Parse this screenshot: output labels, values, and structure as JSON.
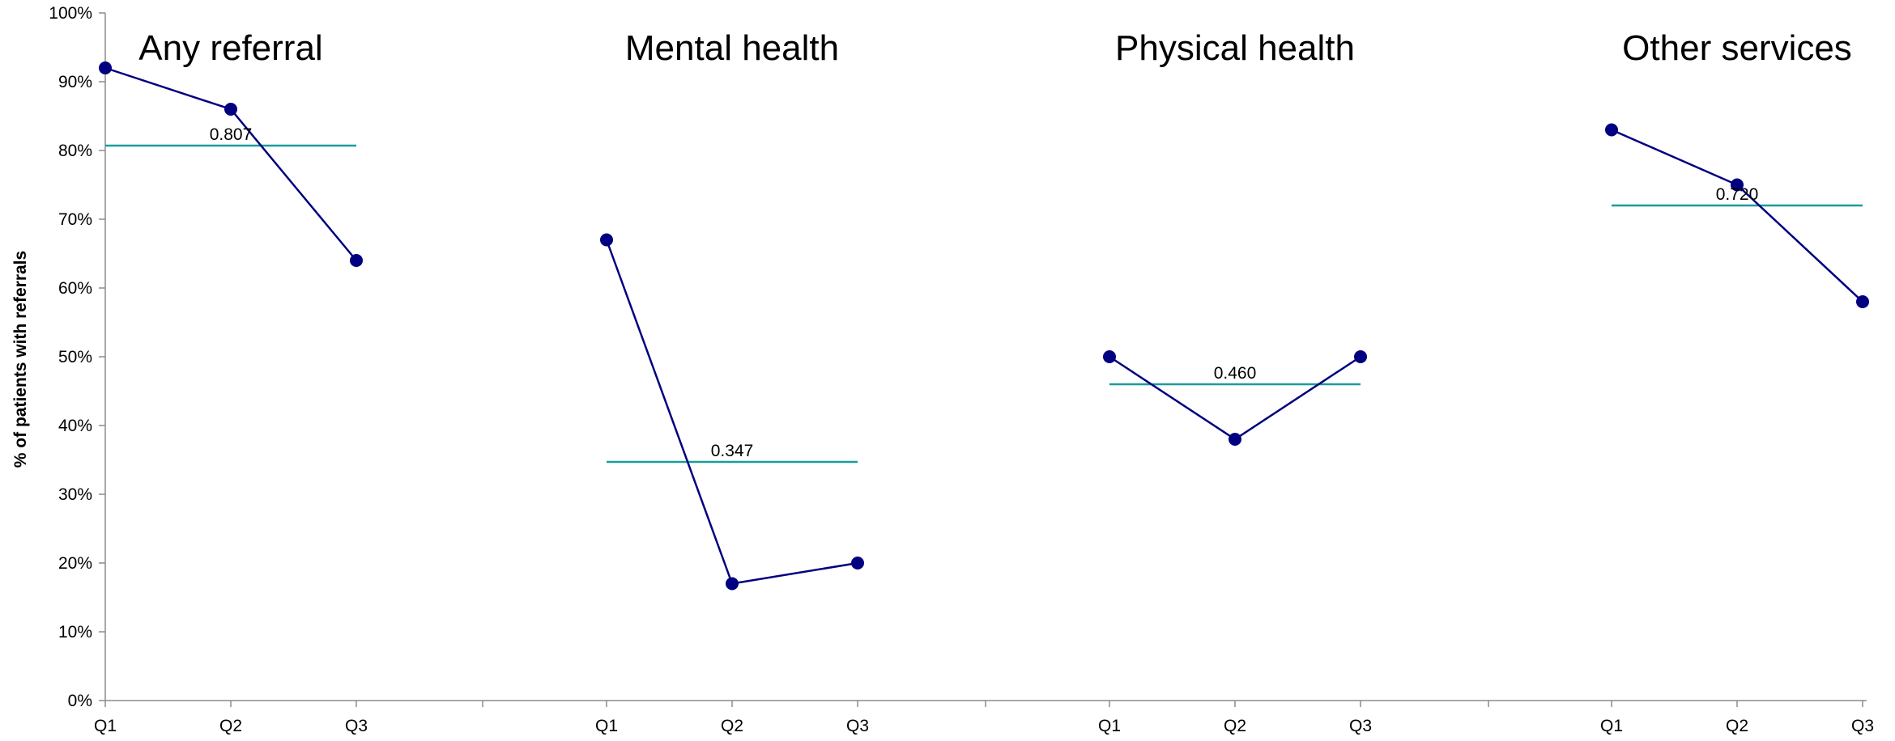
{
  "chart_data": {
    "type": "line",
    "ylabel": "% of patients with referrals",
    "ylim": [
      0,
      100
    ],
    "y_ticks": [
      "0%",
      "10%",
      "20%",
      "30%",
      "40%",
      "50%",
      "60%",
      "70%",
      "80%",
      "90%",
      "100%"
    ],
    "grid": false,
    "colors": {
      "line": "#000080",
      "marker": "#000080",
      "mean_line": "#1a9c9c"
    },
    "panels": [
      {
        "title": "Any referral",
        "categories": [
          "Q1",
          "Q2",
          "Q3"
        ],
        "values": [
          92,
          86,
          64
        ],
        "mean": 80.7,
        "mean_label": "0.807"
      },
      {
        "title": "Mental health",
        "categories": [
          "Q1",
          "Q2",
          "Q3"
        ],
        "values": [
          67,
          17,
          20
        ],
        "mean": 34.7,
        "mean_label": "0.347"
      },
      {
        "title": "Physical health",
        "categories": [
          "Q1",
          "Q2",
          "Q3"
        ],
        "values": [
          50,
          38,
          50
        ],
        "mean": 46.0,
        "mean_label": "0.460"
      },
      {
        "title": "Other services",
        "categories": [
          "Q1",
          "Q2",
          "Q3"
        ],
        "values": [
          83,
          75,
          58
        ],
        "mean": 72.0,
        "mean_label": "0.720"
      }
    ]
  }
}
